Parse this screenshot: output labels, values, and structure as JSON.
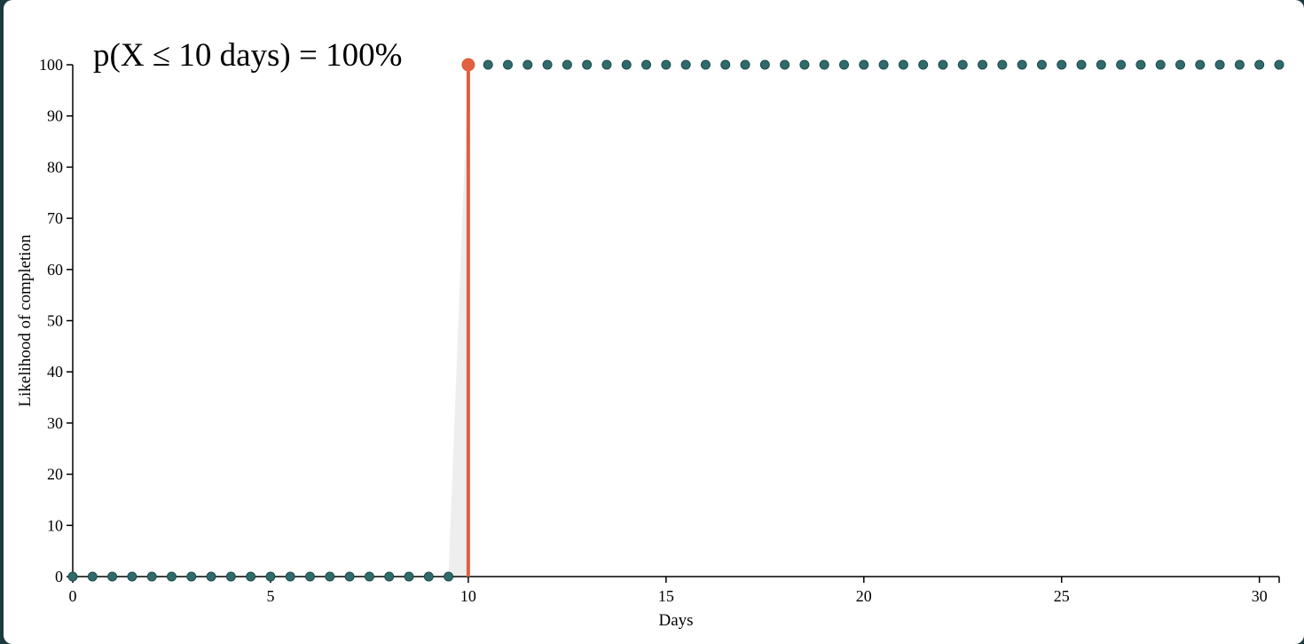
{
  "headline": "p(X ≤ 10 days) = 100%",
  "colors": {
    "point": "#2f6b6d",
    "point_stroke": "#1f4a4c",
    "highlight": "#e0603f",
    "shade": "#eeeeee",
    "frame": "#1d3a3f"
  },
  "chart_data": {
    "type": "scatter",
    "title": "",
    "xlabel": "Days",
    "ylabel": "Likelihood of completion",
    "xlim": [
      0,
      30.5
    ],
    "ylim": [
      0,
      100
    ],
    "x_ticks": [
      0,
      5,
      10,
      15,
      20,
      25,
      30
    ],
    "y_ticks": [
      0,
      10,
      20,
      30,
      40,
      50,
      60,
      70,
      80,
      90,
      100
    ],
    "grid": false,
    "legend": "none",
    "series": [
      {
        "x": [
          0,
          0.5,
          1,
          1.5,
          2,
          2.5,
          3,
          3.5,
          4,
          4.5,
          5,
          5.5,
          6,
          6.5,
          7,
          7.5,
          8,
          8.5,
          9,
          9.5,
          10,
          10.5,
          11,
          11.5,
          12,
          12.5,
          13,
          13.5,
          14,
          14.5,
          15,
          15.5,
          16,
          16.5,
          17,
          17.5,
          18,
          18.5,
          19,
          19.5,
          20,
          20.5,
          21,
          21.5,
          22,
          22.5,
          23,
          23.5,
          24,
          24.5,
          25,
          25.5,
          26,
          26.5,
          27,
          27.5,
          28,
          28.5,
          29,
          29.5,
          30,
          30.5
        ],
        "y": [
          0,
          0,
          0,
          0,
          0,
          0,
          0,
          0,
          0,
          0,
          0,
          0,
          0,
          0,
          0,
          0,
          0,
          0,
          0,
          0,
          100,
          100,
          100,
          100,
          100,
          100,
          100,
          100,
          100,
          100,
          100,
          100,
          100,
          100,
          100,
          100,
          100,
          100,
          100,
          100,
          100,
          100,
          100,
          100,
          100,
          100,
          100,
          100,
          100,
          100,
          100,
          100,
          100,
          100,
          100,
          100,
          100,
          100,
          100,
          100,
          100,
          100
        ]
      }
    ],
    "highlight": {
      "x": 10,
      "y": 100
    }
  }
}
